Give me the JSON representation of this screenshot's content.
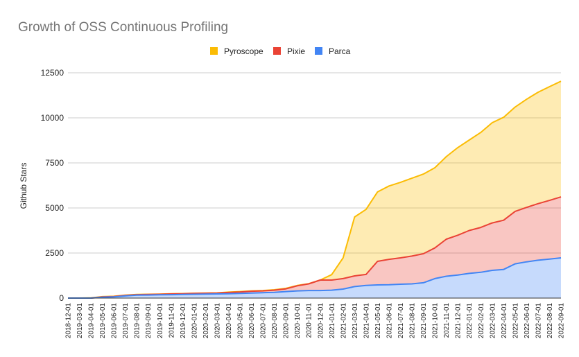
{
  "chart_data": {
    "type": "area",
    "stacked": true,
    "title": "Growth of OSS Continuous Profiling",
    "xlabel": "",
    "ylabel": "Github Stars",
    "ylim": [
      0,
      12500
    ],
    "yticks": [
      0,
      2500,
      5000,
      7500,
      10000,
      12500
    ],
    "grid": true,
    "legend_position": "top",
    "categories": [
      "2018-12-01",
      "2019-03-01",
      "2019-04-01",
      "2019-05-01",
      "2019-06-01",
      "2019-07-01",
      "2019-08-01",
      "2019-09-01",
      "2019-10-01",
      "2019-11-01",
      "2019-12-01",
      "2020-01-01",
      "2020-02-01",
      "2020-03-01",
      "2020-04-01",
      "2020-05-01",
      "2020-06-01",
      "2020-07-01",
      "2020-08-01",
      "2020-09-01",
      "2020-10-01",
      "2020-11-01",
      "2020-12-01",
      "2021-01-01",
      "2021-02-01",
      "2021-03-01",
      "2021-04-01",
      "2021-05-01",
      "2021-06-01",
      "2021-07-01",
      "2021-08-01",
      "2021-09-01",
      "2021-10-01",
      "2021-11-01",
      "2021-12-01",
      "2022-01-01",
      "2022-02-01",
      "2022-03-01",
      "2022-04-01",
      "2022-05-01",
      "2022-06-01",
      "2022-07-01",
      "2022-08-01",
      "2022-09-01"
    ],
    "series": [
      {
        "name": "Parca",
        "color": "#4285f4",
        "values": [
          0,
          0,
          0,
          50,
          70,
          120,
          160,
          170,
          180,
          190,
          200,
          210,
          220,
          230,
          240,
          260,
          280,
          300,
          320,
          360,
          400,
          420,
          420,
          440,
          500,
          640,
          700,
          730,
          740,
          770,
          790,
          850,
          1080,
          1210,
          1280,
          1370,
          1430,
          1540,
          1590,
          1900,
          2010,
          2100,
          2160,
          2230
        ]
      },
      {
        "name": "Pixie",
        "color": "#ea4335",
        "values": [
          0,
          0,
          0,
          20,
          20,
          30,
          30,
          30,
          30,
          40,
          40,
          50,
          50,
          50,
          70,
          80,
          100,
          100,
          120,
          150,
          280,
          370,
          580,
          560,
          580,
          590,
          610,
          1310,
          1410,
          1460,
          1540,
          1610,
          1700,
          2060,
          2210,
          2380,
          2490,
          2630,
          2730,
          2910,
          3020,
          3140,
          3260,
          3380
        ]
      },
      {
        "name": "Pyroscope",
        "color": "#fbbc04",
        "values": [
          0,
          0,
          10,
          10,
          10,
          10,
          10,
          10,
          10,
          10,
          10,
          10,
          10,
          10,
          20,
          20,
          20,
          20,
          20,
          30,
          20,
          10,
          0,
          300,
          1150,
          3270,
          3610,
          3850,
          4070,
          4190,
          4320,
          4420,
          4450,
          4580,
          4860,
          5020,
          5270,
          5560,
          5710,
          5790,
          6000,
          6180,
          6310,
          6420
        ]
      }
    ],
    "legend": [
      "Pyroscope",
      "Pixie",
      "Parca"
    ]
  }
}
